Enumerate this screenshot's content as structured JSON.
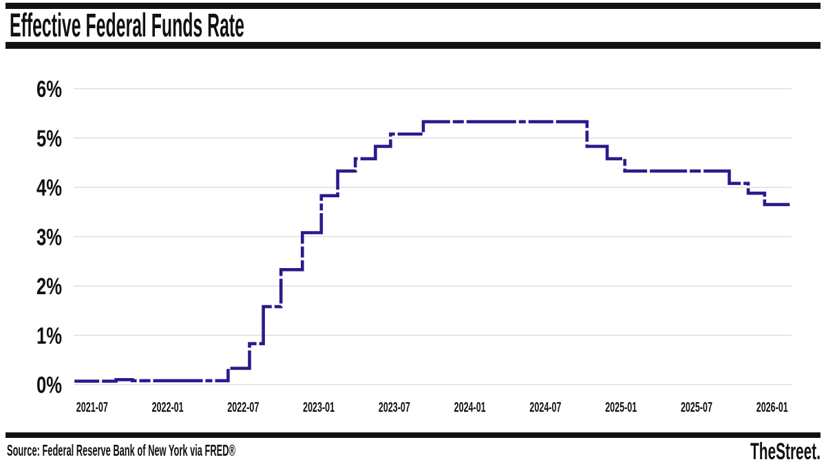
{
  "header": {
    "title": "Effective Federal Funds Rate"
  },
  "footer": {
    "source": "Source: Federal Reserve Bank of New York via FRED®",
    "brand": "TheStreet."
  },
  "chart_data": {
    "type": "line",
    "subtype": "step",
    "title": "Effective Federal Funds Rate",
    "ylabel": "",
    "xlabel": "",
    "unit": "percent",
    "ylim": [
      0,
      6
    ],
    "grid": true,
    "legend": "none",
    "line_color": "#2b1a8c",
    "grid_color": "#d8d8d8",
    "text_color": "#111111",
    "rule_color": "#111111",
    "y_ticks": [
      {
        "value": 0,
        "label": "0%"
      },
      {
        "value": 1,
        "label": "1%"
      },
      {
        "value": 2,
        "label": "2%"
      },
      {
        "value": 3,
        "label": "3%"
      },
      {
        "value": 4,
        "label": "4%"
      },
      {
        "value": 5,
        "label": "5%"
      },
      {
        "value": 6,
        "label": "6%"
      }
    ],
    "x_ticks": [
      {
        "month": 0,
        "label": "2021-07"
      },
      {
        "month": 6,
        "label": "2022-01"
      },
      {
        "month": 12,
        "label": "2022-07"
      },
      {
        "month": 18,
        "label": "2023-01"
      },
      {
        "month": 24,
        "label": "2023-07"
      },
      {
        "month": 30,
        "label": "2024-01"
      },
      {
        "month": 36,
        "label": "2024-07"
      },
      {
        "month": 42,
        "label": "2025-01"
      },
      {
        "month": 48,
        "label": "2025-07"
      },
      {
        "month": 54,
        "label": "2026-01"
      }
    ],
    "segments": [
      {
        "start": "2021-05",
        "from_month": -1.4,
        "to_month": 1.9,
        "rate": 0.07
      },
      {
        "start": "2021-08",
        "from_month": 1.9,
        "to_month": 3.2,
        "rate": 0.1
      },
      {
        "start": "2021-10",
        "from_month": 3.2,
        "to_month": 10.8,
        "rate": 0.08
      },
      {
        "start": "2022-05",
        "from_month": 10.8,
        "to_month": 12.5,
        "rate": 0.33
      },
      {
        "start": "2022-07",
        "from_month": 12.5,
        "to_month": 13.6,
        "rate": 0.83
      },
      {
        "start": "2022-08",
        "from_month": 13.6,
        "to_month": 15.0,
        "rate": 1.58
      },
      {
        "start": "2022-10",
        "from_month": 15.0,
        "to_month": 16.7,
        "rate": 2.33
      },
      {
        "start": "2022-11",
        "from_month": 16.7,
        "to_month": 18.2,
        "rate": 3.08
      },
      {
        "start": "2023-01",
        "from_month": 18.2,
        "to_month": 19.5,
        "rate": 3.83
      },
      {
        "start": "2023-02",
        "from_month": 19.5,
        "to_month": 20.9,
        "rate": 4.33
      },
      {
        "start": "2023-03",
        "from_month": 20.9,
        "to_month": 22.5,
        "rate": 4.58
      },
      {
        "start": "2023-05",
        "from_month": 22.5,
        "to_month": 23.7,
        "rate": 4.83
      },
      {
        "start": "2023-06",
        "from_month": 23.7,
        "to_month": 26.3,
        "rate": 5.08
      },
      {
        "start": "2023-09",
        "from_month": 26.3,
        "to_month": 39.3,
        "rate": 5.33
      },
      {
        "start": "2024-10",
        "from_month": 39.3,
        "to_month": 40.9,
        "rate": 4.83
      },
      {
        "start": "2024-11",
        "from_month": 40.9,
        "to_month": 42.3,
        "rate": 4.58
      },
      {
        "start": "2025-01",
        "from_month": 42.3,
        "to_month": 50.6,
        "rate": 4.33
      },
      {
        "start": "2025-09",
        "from_month": 50.6,
        "to_month": 52.1,
        "rate": 4.08
      },
      {
        "start": "2025-11",
        "from_month": 52.1,
        "to_month": 53.4,
        "rate": 3.88
      },
      {
        "start": "2025-12",
        "from_month": 53.4,
        "to_month": 55.4,
        "rate": 3.65
      }
    ]
  }
}
